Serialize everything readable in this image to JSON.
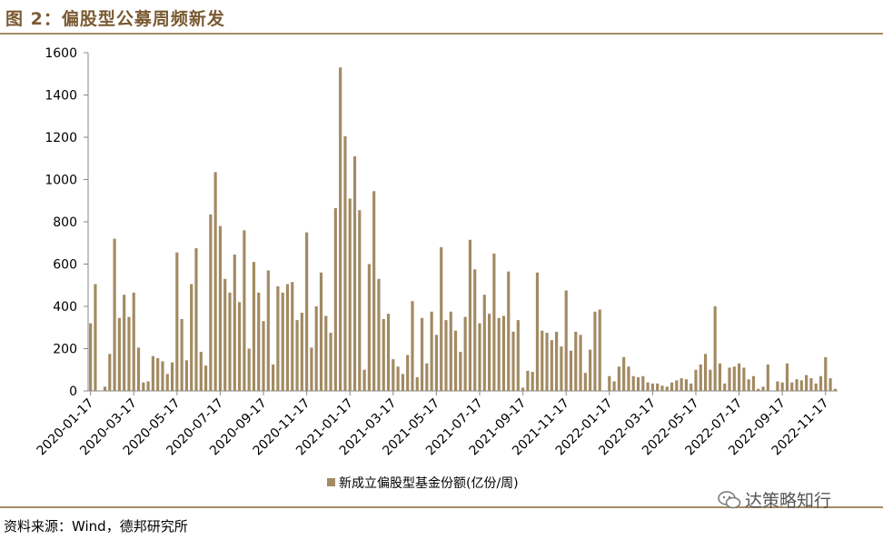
{
  "header": {
    "figure_title": "图 2：偏股型公募周频新发"
  },
  "footer": {
    "source": "资料来源：Wind，德邦研究所",
    "watermark": "达策略知行"
  },
  "colors": {
    "bar": "#a28a62",
    "rule": "#a58a64",
    "title": "#7a5a32"
  },
  "chart_data": {
    "type": "bar",
    "series": [
      {
        "name": "新成立偏股型基金份额(亿份/周)",
        "values": [
          320,
          505,
          0,
          20,
          175,
          720,
          345,
          455,
          350,
          465,
          205,
          40,
          45,
          165,
          155,
          140,
          80,
          135,
          655,
          340,
          145,
          505,
          675,
          185,
          120,
          835,
          1035,
          780,
          530,
          465,
          645,
          420,
          760,
          200,
          610,
          465,
          330,
          570,
          125,
          495,
          465,
          505,
          515,
          335,
          370,
          750,
          205,
          400,
          560,
          355,
          275,
          865,
          1530,
          1205,
          910,
          1110,
          855,
          100,
          600,
          945,
          530,
          340,
          365,
          150,
          115,
          80,
          170,
          425,
          65,
          345,
          130,
          375,
          265,
          680,
          335,
          375,
          285,
          185,
          350,
          715,
          575,
          320,
          455,
          365,
          650,
          345,
          355,
          565,
          280,
          335,
          15,
          95,
          90,
          560,
          285,
          275,
          240,
          280,
          210,
          475,
          190,
          280,
          265,
          85,
          195,
          375,
          385,
          0,
          70,
          45,
          115,
          160,
          115,
          70,
          65,
          70,
          40,
          35,
          35,
          25,
          20,
          40,
          50,
          60,
          55,
          35,
          100,
          125,
          175,
          100,
          400,
          130,
          35,
          110,
          115,
          130,
          110,
          55,
          70,
          10,
          20,
          125,
          0,
          45,
          40,
          130,
          40,
          55,
          50,
          75,
          60,
          35,
          70,
          160,
          60,
          10
        ]
      }
    ],
    "x_tick_labels": [
      "2020-01-17",
      "2020-03-17",
      "2020-05-17",
      "2020-07-17",
      "2020-09-17",
      "2020-11-17",
      "2021-01-17",
      "2021-03-17",
      "2021-05-17",
      "2021-07-17",
      "2021-09-17",
      "2021-11-17",
      "2022-01-17",
      "2022-03-17",
      "2022-05-17",
      "2022-07-17",
      "2022-09-17",
      "2022-11-17"
    ],
    "x_tick_every": 9,
    "y_ticks": [
      0,
      200,
      400,
      600,
      800,
      1000,
      1200,
      1400,
      1600
    ],
    "ylim": [
      0,
      1600
    ],
    "title": "",
    "xlabel": "",
    "ylabel": "",
    "grid": false,
    "legend_position": "bottom-center"
  }
}
